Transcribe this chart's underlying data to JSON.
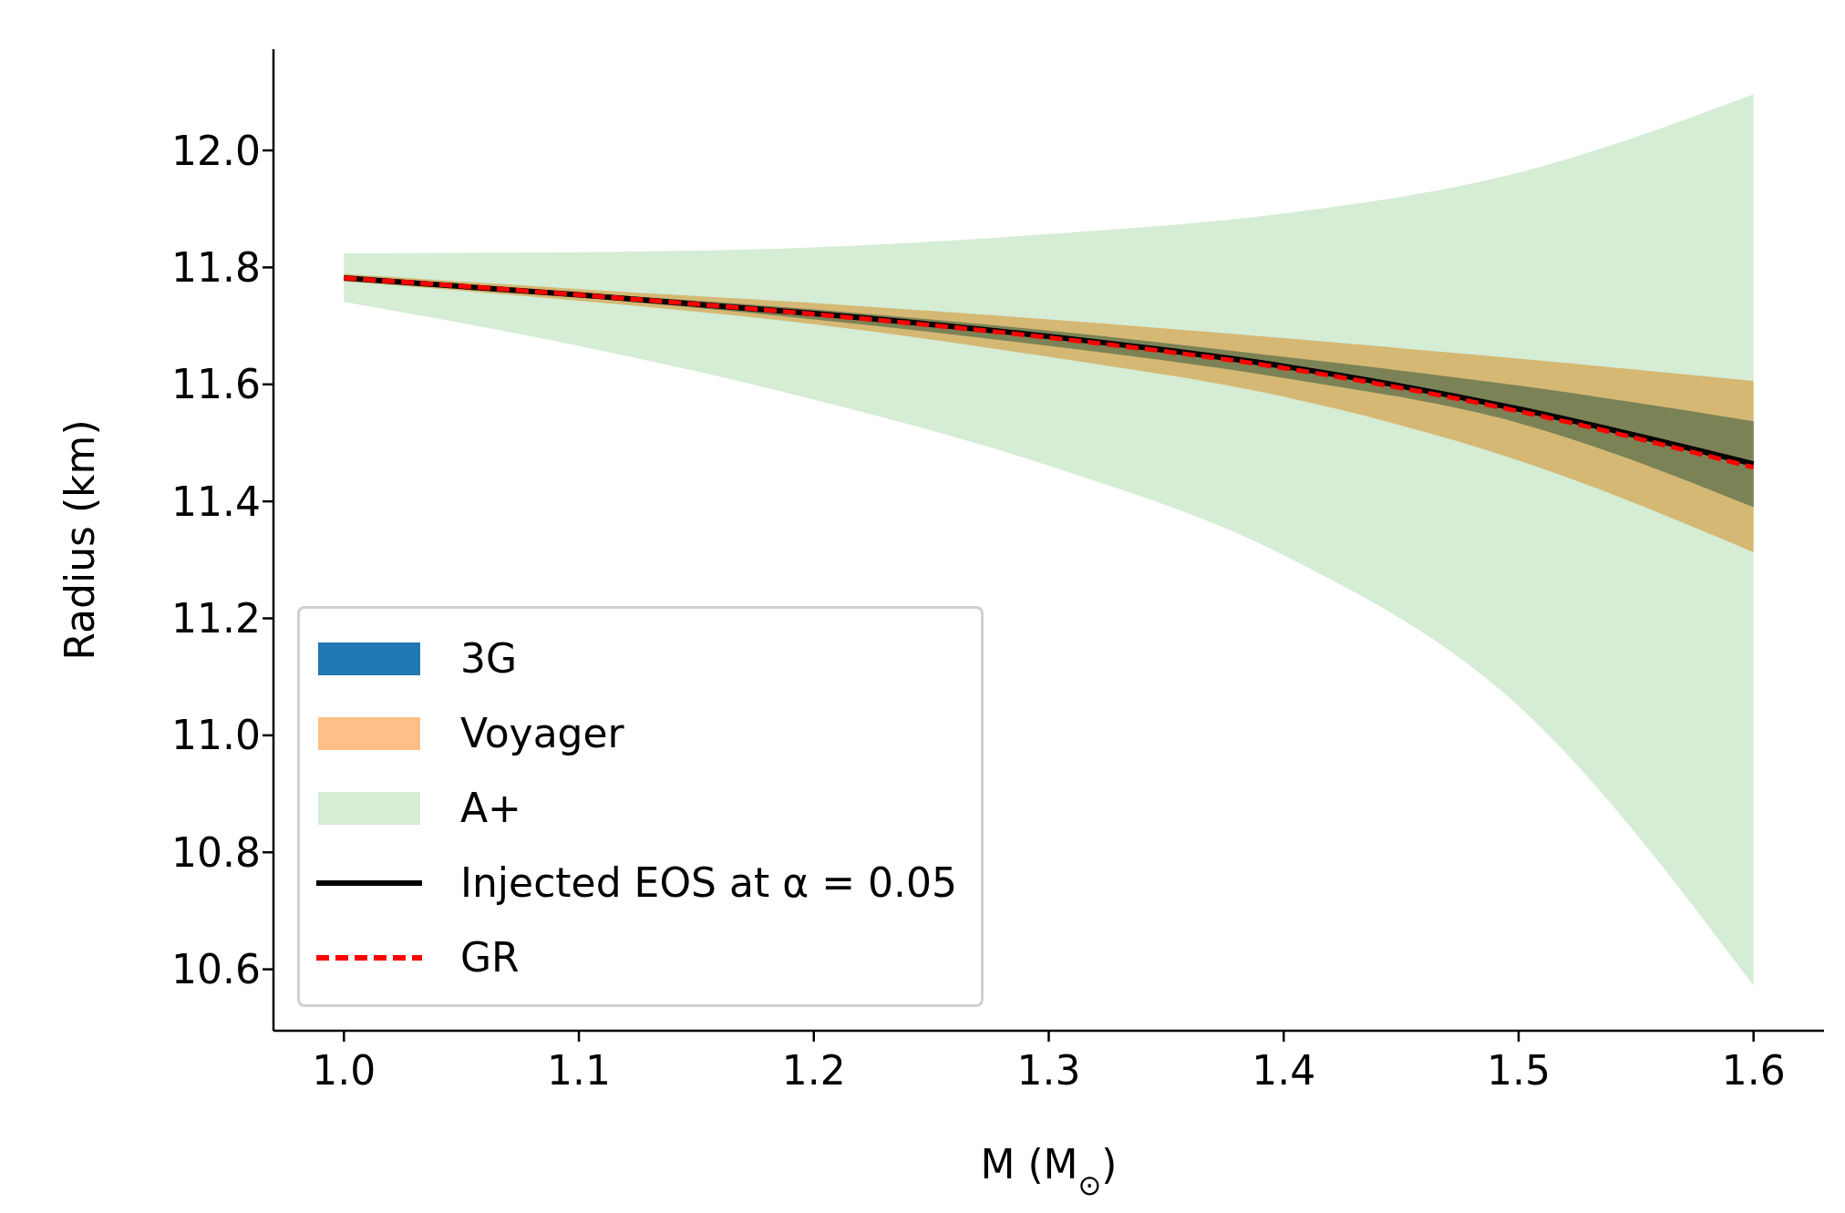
{
  "chart_data": {
    "type": "line",
    "xlabel": "M (M$_{⊙}$)",
    "ylabel": "Radius (km)",
    "x": [
      1.0,
      1.1,
      1.2,
      1.3,
      1.4,
      1.5,
      1.6
    ],
    "series": [
      {
        "name": "3G",
        "type": "area",
        "color": "#1f77b4",
        "values": [
          null,
          null,
          null,
          null,
          null,
          null,
          null
        ],
        "lower": [
          11.779,
          11.749,
          11.711,
          11.666,
          11.611,
          11.534,
          11.39
        ],
        "upper": [
          11.784,
          11.757,
          11.728,
          11.692,
          11.647,
          11.598,
          11.537
        ]
      },
      {
        "name": "Voyager",
        "type": "area",
        "color": "#ff7f0e",
        "values": [
          null,
          null,
          null,
          null,
          null,
          null,
          null
        ],
        "lower": [
          11.776,
          11.743,
          11.703,
          11.647,
          11.579,
          11.47,
          11.313
        ],
        "upper": [
          11.789,
          11.763,
          11.739,
          11.711,
          11.679,
          11.644,
          11.606
        ]
      },
      {
        "name": "A+",
        "type": "area",
        "color": "#2ca02c",
        "values": [
          null,
          null,
          null,
          null,
          null,
          null,
          null
        ],
        "lower": [
          11.741,
          11.666,
          11.574,
          11.461,
          11.308,
          11.05,
          10.572
        ],
        "upper": [
          11.824,
          11.826,
          11.834,
          11.857,
          11.892,
          11.962,
          12.096
        ]
      },
      {
        "name": "Injected EOS at α = 0.05",
        "color": "#000000",
        "line_style": "solid",
        "values": [
          11.782,
          11.753,
          11.721,
          11.682,
          11.631,
          11.558,
          11.464
        ]
      },
      {
        "name": "GR",
        "color": "#ff0000",
        "line_style": "dashed",
        "values": [
          11.782,
          11.753,
          11.72,
          11.68,
          11.628,
          11.554,
          11.458
        ]
      }
    ],
    "xlim": [
      0.97,
      1.63
    ],
    "xticks": [
      {
        "value": 1.0,
        "label": "1.0"
      },
      1.1,
      1.2,
      1.3,
      1.4,
      1.5,
      1.6
    ],
    "ylim": [
      10.495,
      12.173
    ],
    "yticks": [
      10.6,
      10.8,
      {
        "value": 11.0,
        "label": "11.0"
      },
      11.2,
      11.4,
      11.6,
      11.8,
      {
        "value": 12.0,
        "label": "12.0"
      }
    ],
    "grid": false,
    "legend": "bottom left",
    "marker": "none"
  }
}
